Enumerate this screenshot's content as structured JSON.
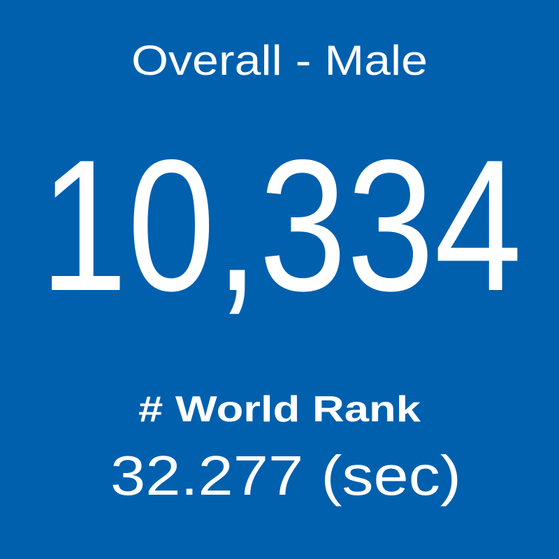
{
  "tile": {
    "title": "Overall - Male",
    "count": "10,334",
    "rank_label": "# World Rank",
    "time": "32.277 (sec)"
  }
}
